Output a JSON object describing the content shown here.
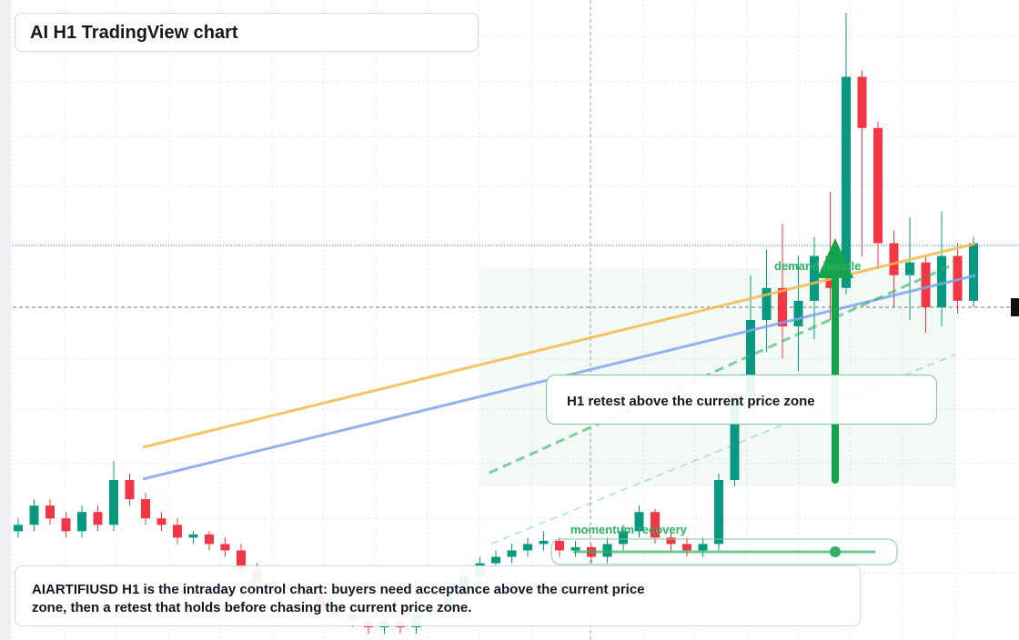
{
  "chart_data": {
    "type": "candlestick",
    "title": "AI H1 TradingView chart",
    "annotations": {
      "zone": "demand handle",
      "momentum": "momentum recovery",
      "callout": "H1 retest above the current price zone",
      "note": "AIARTIFIUSD H1 is the intraday control chart: buyers need acceptance above the current price zone, then a retest that holds before chasing the current price zone."
    },
    "open": [
      17,
      18,
      21,
      19,
      17,
      20,
      18,
      25,
      22,
      19,
      18,
      16,
      16.5,
      15,
      14,
      11,
      9,
      8,
      8.5,
      7,
      5,
      4,
      3,
      2,
      3,
      2,
      4,
      5,
      7,
      10,
      12,
      13,
      14,
      15,
      15.5,
      14,
      14.5,
      13,
      15,
      17,
      20,
      16,
      15,
      14,
      15,
      25,
      38,
      50,
      55,
      49,
      53,
      60,
      55,
      88,
      80,
      62,
      57,
      59,
      52,
      60,
      53
    ],
    "high": [
      19,
      22,
      22,
      20,
      21,
      21,
      28,
      26,
      23,
      20,
      19,
      17,
      17,
      16,
      15,
      12,
      10,
      9.5,
      9,
      8,
      6,
      5,
      4,
      4,
      4,
      5,
      6,
      8,
      11,
      13,
      14,
      15,
      16,
      17,
      16,
      15.5,
      15,
      16,
      18,
      21,
      20.5,
      17,
      16,
      16,
      26,
      39,
      57,
      61,
      65,
      60,
      63,
      70,
      98,
      89,
      81,
      64,
      66,
      60,
      67,
      62,
      63
    ],
    "low": [
      16,
      17,
      18,
      16,
      16,
      17,
      17,
      21,
      18,
      17,
      15,
      15,
      14,
      13,
      10,
      8,
      7,
      7,
      6,
      4,
      3,
      2,
      1,
      1,
      1,
      1,
      3,
      4,
      6,
      9,
      11,
      12,
      13,
      14,
      13,
      13,
      12,
      12,
      14,
      16,
      15,
      14,
      13,
      13,
      14,
      24,
      37,
      45,
      44,
      42,
      47,
      50,
      54,
      60,
      58,
      52,
      50,
      48,
      49,
      51,
      52
    ],
    "close": [
      18,
      21,
      19,
      17,
      20,
      18,
      25,
      22,
      19,
      18,
      16,
      16.5,
      15,
      14,
      11,
      9,
      8,
      8.5,
      7,
      5,
      4,
      3,
      2,
      3,
      2,
      4,
      5,
      7,
      10,
      12,
      13,
      14,
      15,
      15.5,
      14,
      14.5,
      13,
      15,
      17,
      20,
      16,
      15,
      14,
      15,
      25,
      38,
      50,
      55,
      49,
      53,
      60,
      55,
      88,
      80,
      62,
      57,
      59,
      52,
      60,
      53,
      62
    ],
    "ylim": [
      0,
      100
    ],
    "up_color": "#089981",
    "down_color": "#f23645"
  }
}
